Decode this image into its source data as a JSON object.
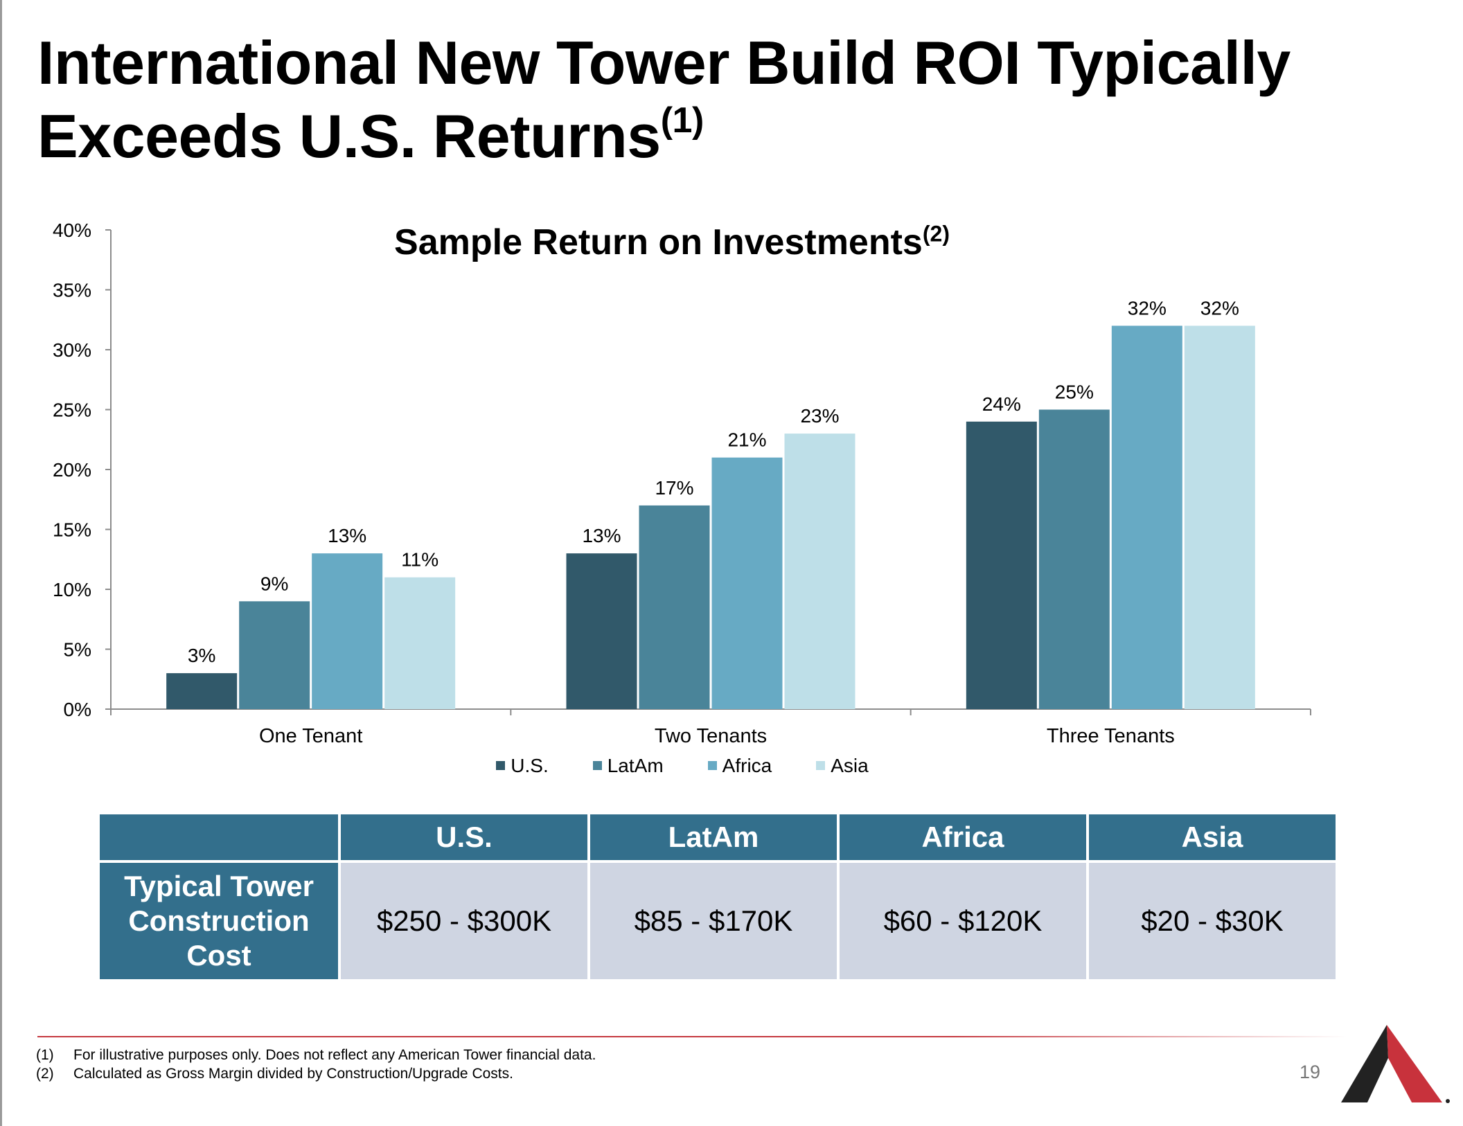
{
  "slide": {
    "title_line1": "International New Tower Build ROI Typically",
    "title_line2": "Exceeds U.S. Returns",
    "title_sup": "(1)",
    "page_number": "19"
  },
  "chart_data": {
    "type": "bar",
    "title": "Sample Return on Investments",
    "title_sup": "(2)",
    "categories": [
      "One Tenant",
      "Two Tenants",
      "Three Tenants"
    ],
    "series": [
      {
        "name": "U.S.",
        "color": "#31596a",
        "values": [
          3,
          13,
          24
        ],
        "labels": [
          "3%",
          "13%",
          "24%"
        ]
      },
      {
        "name": "LatAm",
        "color": "#4a8499",
        "values": [
          9,
          17,
          25
        ],
        "labels": [
          "9%",
          "17%",
          "25%"
        ]
      },
      {
        "name": "Africa",
        "color": "#67aac4",
        "values": [
          13,
          21,
          32
        ],
        "labels": [
          "13%",
          "21%",
          "32%"
        ]
      },
      {
        "name": "Asia",
        "color": "#bedfe8",
        "values": [
          11,
          23,
          32
        ],
        "labels": [
          "11%",
          "23%",
          "32%"
        ]
      }
    ],
    "ylim": [
      0,
      40
    ],
    "yticks": [
      0,
      5,
      10,
      15,
      20,
      25,
      30,
      35,
      40
    ],
    "ytick_labels": [
      "0%",
      "5%",
      "10%",
      "15%",
      "20%",
      "25%",
      "30%",
      "35%",
      "40%"
    ],
    "grid": false,
    "legend_position": "bottom"
  },
  "cost_table": {
    "headers": [
      "U.S.",
      "LatAm",
      "Africa",
      "Asia"
    ],
    "row_label_lines": [
      "Typical Tower",
      "Construction",
      "Cost"
    ],
    "values": [
      "$250 - $300K",
      "$85 - $170K",
      "$60 - $120K",
      "$20 - $30K"
    ]
  },
  "footnotes": [
    {
      "num": "(1)",
      "text": "For illustrative purposes only. Does not reflect any American Tower financial data."
    },
    {
      "num": "(2)",
      "text": "Calculated as Gross Margin divided by Construction/Upgrade Costs."
    }
  ],
  "colors": {
    "header_teal": "#336f8c",
    "cell_gray": "#cfd5e2",
    "accent_red": "#c5383f",
    "logo_dark": "#222222"
  }
}
